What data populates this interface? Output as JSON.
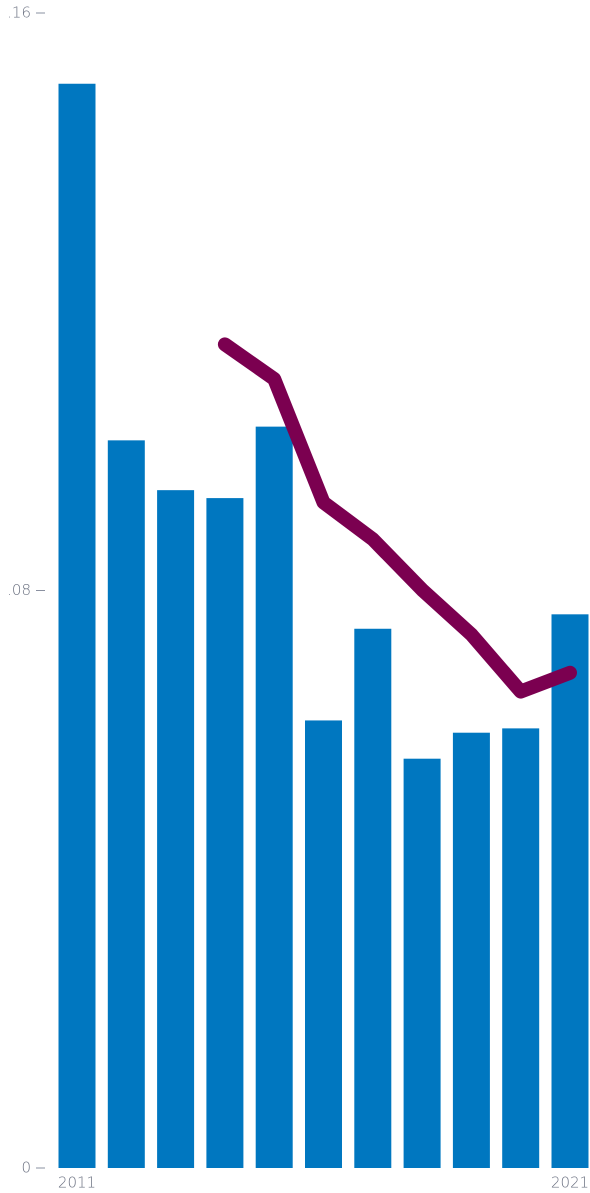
{
  "chart_data": {
    "type": "bar",
    "categories": [
      "2011",
      null,
      null,
      null,
      null,
      null,
      null,
      null,
      null,
      null,
      "2021"
    ],
    "series": [
      {
        "type": "bar",
        "color": "#0077c0",
        "values": [
          0.1502,
          0.1008,
          0.0939,
          0.0928,
          0.1027,
          0.062,
          0.0747,
          0.0567,
          0.0603,
          0.0609,
          0.0767
        ]
      },
      {
        "type": "line",
        "color": "#7b0050",
        "values": [
          null,
          null,
          null,
          0.1141,
          0.1093,
          0.0922,
          0.0871,
          0.0801,
          0.0739,
          0.066,
          0.0686
        ]
      }
    ],
    "ylim": [
      0,
      0.16
    ],
    "yticks": [
      0,
      {
        "value": 0.08,
        "label": ".08"
      },
      {
        "value": 0.16,
        "label": ".16"
      }
    ]
  }
}
